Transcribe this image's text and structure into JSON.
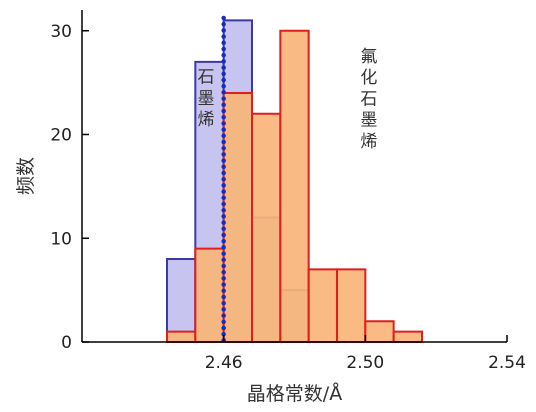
{
  "chart_data": {
    "type": "bar",
    "xlabel": "晶格常数/Å",
    "ylabel": "频数",
    "xlim": [
      2.42,
      2.54
    ],
    "ylim": [
      0,
      32
    ],
    "x_ticks": [
      "2.46",
      "2.50",
      "2.54"
    ],
    "x_tick_values": [
      2.46,
      2.5,
      2.54
    ],
    "y_ticks": [
      "0",
      "10",
      "20",
      "30"
    ],
    "y_tick_values": [
      0,
      10,
      20,
      30
    ],
    "bin_width": 0.008,
    "colors": {
      "graphene_fill": "#c8c4f0",
      "graphene_edge": "#3a3aa8",
      "fluoro_fill": "#f8b578",
      "fluoro_edge": "#dd1f1f",
      "dotted_line": "#1a2bb5",
      "axis": "#000000"
    },
    "series": [
      {
        "values": [
          {
            "x0": 2.444,
            "value": 8
          },
          {
            "x0": 2.452,
            "value": 27
          },
          {
            "x0": 2.46,
            "value": 31
          },
          {
            "x0": 2.468,
            "value": 12
          },
          {
            "x0": 2.476,
            "value": 5
          }
        ]
      },
      {
        "values": [
          {
            "x0": 2.444,
            "value": 1
          },
          {
            "x0": 2.452,
            "value": 9
          },
          {
            "x0": 2.46,
            "value": 24
          },
          {
            "x0": 2.468,
            "value": 22
          },
          {
            "x0": 2.476,
            "value": 30
          },
          {
            "x0": 2.484,
            "value": 7
          },
          {
            "x0": 2.492,
            "value": 7
          },
          {
            "x0": 2.5,
            "value": 2
          },
          {
            "x0": 2.508,
            "value": 1
          }
        ]
      }
    ],
    "reference_line": {
      "x": 2.46
    },
    "annotations": [
      {
        "text": "石墨烯",
        "anchor_x": 2.455,
        "anchor_y": 25
      },
      {
        "text": "氟化石墨烯",
        "anchor_x": 2.501,
        "anchor_y": 27
      }
    ]
  }
}
